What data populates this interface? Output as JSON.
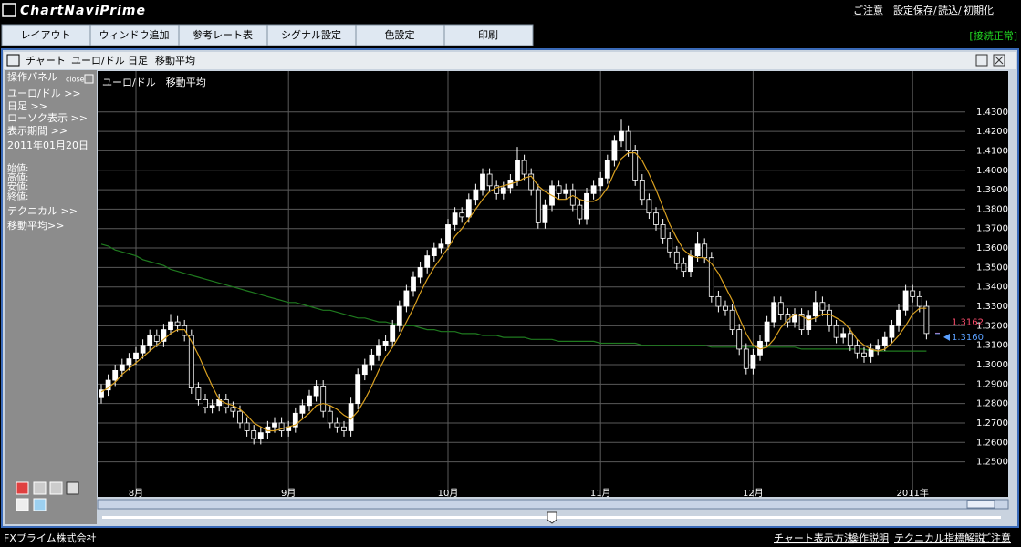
{
  "header": {
    "logo": "ChartNaviPrime",
    "links": [
      "ご注意",
      "設定保存/",
      "読込/",
      "初期化"
    ]
  },
  "menu": [
    "レイアウト",
    "ウィンドウ追加",
    "参考レート表",
    "シグナル設定",
    "色設定",
    "印刷"
  ],
  "status": "[接続正常]",
  "window_title": [
    "チャート",
    "ユーロ/ドル",
    "日足",
    "移動平均"
  ],
  "panel": {
    "title": "操作パネル",
    "close": "close",
    "items": [
      "ユーロ/ドル >>",
      "日足 >>",
      "ローソク表示 >>",
      "表示期間 >>",
      "2011年01月20日"
    ],
    "ohlc_labels": [
      "始値:",
      "高値:",
      "安値:",
      "終値:"
    ],
    "items2": [
      "テクニカル >>",
      "移動平均>>"
    ]
  },
  "chart_data": {
    "type": "candlestick",
    "title": "ユーロ/ドル　移動平均",
    "candles": [
      [
        1.283,
        1.29,
        1.28,
        1.287
      ],
      [
        1.287,
        1.295,
        1.284,
        1.292
      ],
      [
        1.292,
        1.3,
        1.289,
        1.297
      ],
      [
        1.297,
        1.303,
        1.294,
        1.3
      ],
      [
        1.3,
        1.306,
        1.297,
        1.303
      ],
      [
        1.303,
        1.309,
        1.3,
        1.306
      ],
      [
        1.306,
        1.313,
        1.303,
        1.31
      ],
      [
        1.31,
        1.318,
        1.307,
        1.315
      ],
      [
        1.315,
        1.318,
        1.309,
        1.312
      ],
      [
        1.312,
        1.321,
        1.309,
        1.318
      ],
      [
        1.318,
        1.326,
        1.315,
        1.322
      ],
      [
        1.322,
        1.325,
        1.317,
        1.32
      ],
      [
        1.32,
        1.323,
        1.312,
        1.315
      ],
      [
        1.315,
        1.318,
        1.285,
        1.288
      ],
      [
        1.288,
        1.291,
        1.279,
        1.282
      ],
      [
        1.282,
        1.285,
        1.275,
        1.278
      ],
      [
        1.278,
        1.282,
        1.275,
        1.279
      ],
      [
        1.279,
        1.285,
        1.276,
        1.282
      ],
      [
        1.282,
        1.285,
        1.275,
        1.278
      ],
      [
        1.278,
        1.281,
        1.273,
        1.276
      ],
      [
        1.276,
        1.279,
        1.267,
        1.27
      ],
      [
        1.27,
        1.273,
        1.263,
        1.266
      ],
      [
        1.266,
        1.269,
        1.259,
        1.262
      ],
      [
        1.262,
        1.268,
        1.259,
        1.265
      ],
      [
        1.265,
        1.271,
        1.262,
        1.268
      ],
      [
        1.268,
        1.273,
        1.265,
        1.27
      ],
      [
        1.27,
        1.273,
        1.263,
        1.266
      ],
      [
        1.266,
        1.271,
        1.263,
        1.268
      ],
      [
        1.268,
        1.278,
        1.265,
        1.275
      ],
      [
        1.275,
        1.282,
        1.272,
        1.279
      ],
      [
        1.279,
        1.287,
        1.276,
        1.284
      ],
      [
        1.284,
        1.292,
        1.281,
        1.289
      ],
      [
        1.289,
        1.292,
        1.273,
        1.276
      ],
      [
        1.276,
        1.279,
        1.267,
        1.27
      ],
      [
        1.27,
        1.273,
        1.265,
        1.268
      ],
      [
        1.268,
        1.271,
        1.263,
        1.266
      ],
      [
        1.266,
        1.283,
        1.263,
        1.28
      ],
      [
        1.28,
        1.298,
        1.277,
        1.295
      ],
      [
        1.295,
        1.303,
        1.292,
        1.3
      ],
      [
        1.3,
        1.308,
        1.297,
        1.305
      ],
      [
        1.305,
        1.313,
        1.302,
        1.31
      ],
      [
        1.31,
        1.315,
        1.307,
        1.312
      ],
      [
        1.312,
        1.323,
        1.309,
        1.32
      ],
      [
        1.32,
        1.333,
        1.317,
        1.33
      ],
      [
        1.33,
        1.341,
        1.327,
        1.338
      ],
      [
        1.338,
        1.348,
        1.335,
        1.345
      ],
      [
        1.345,
        1.353,
        1.342,
        1.35
      ],
      [
        1.35,
        1.359,
        1.347,
        1.356
      ],
      [
        1.356,
        1.363,
        1.353,
        1.36
      ],
      [
        1.36,
        1.365,
        1.357,
        1.362
      ],
      [
        1.362,
        1.375,
        1.359,
        1.372
      ],
      [
        1.372,
        1.381,
        1.369,
        1.378
      ],
      [
        1.378,
        1.381,
        1.373,
        1.376
      ],
      [
        1.376,
        1.388,
        1.373,
        1.385
      ],
      [
        1.385,
        1.393,
        1.382,
        1.39
      ],
      [
        1.39,
        1.401,
        1.387,
        1.398
      ],
      [
        1.398,
        1.401,
        1.389,
        1.392
      ],
      [
        1.392,
        1.395,
        1.385,
        1.388
      ],
      [
        1.388,
        1.394,
        1.385,
        1.391
      ],
      [
        1.391,
        1.398,
        1.388,
        1.395
      ],
      [
        1.395,
        1.412,
        1.392,
        1.405
      ],
      [
        1.405,
        1.408,
        1.395,
        1.398
      ],
      [
        1.398,
        1.401,
        1.387,
        1.39
      ],
      [
        1.39,
        1.393,
        1.37,
        1.373
      ],
      [
        1.373,
        1.385,
        1.37,
        1.382
      ],
      [
        1.382,
        1.395,
        1.379,
        1.392
      ],
      [
        1.392,
        1.395,
        1.385,
        1.388
      ],
      [
        1.388,
        1.393,
        1.385,
        1.39
      ],
      [
        1.39,
        1.393,
        1.379,
        1.382
      ],
      [
        1.382,
        1.385,
        1.372,
        1.375
      ],
      [
        1.375,
        1.391,
        1.372,
        1.388
      ],
      [
        1.388,
        1.395,
        1.385,
        1.392
      ],
      [
        1.392,
        1.399,
        1.389,
        1.396
      ],
      [
        1.396,
        1.408,
        1.393,
        1.405
      ],
      [
        1.405,
        1.418,
        1.402,
        1.415
      ],
      [
        1.415,
        1.426,
        1.412,
        1.42
      ],
      [
        1.42,
        1.423,
        1.407,
        1.41
      ],
      [
        1.41,
        1.413,
        1.392,
        1.395
      ],
      [
        1.395,
        1.398,
        1.382,
        1.385
      ],
      [
        1.385,
        1.388,
        1.375,
        1.378
      ],
      [
        1.378,
        1.381,
        1.369,
        1.372
      ],
      [
        1.372,
        1.375,
        1.362,
        1.365
      ],
      [
        1.365,
        1.368,
        1.355,
        1.358
      ],
      [
        1.358,
        1.361,
        1.349,
        1.352
      ],
      [
        1.352,
        1.355,
        1.345,
        1.348
      ],
      [
        1.348,
        1.359,
        1.345,
        1.356
      ],
      [
        1.356,
        1.368,
        1.353,
        1.362
      ],
      [
        1.362,
        1.365,
        1.352,
        1.355
      ],
      [
        1.355,
        1.358,
        1.332,
        1.335
      ],
      [
        1.335,
        1.338,
        1.327,
        1.33
      ],
      [
        1.33,
        1.333,
        1.325,
        1.328
      ],
      [
        1.328,
        1.331,
        1.315,
        1.318
      ],
      [
        1.318,
        1.321,
        1.305,
        1.308
      ],
      [
        1.308,
        1.311,
        1.295,
        1.298
      ],
      [
        1.298,
        1.308,
        1.295,
        1.305
      ],
      [
        1.305,
        1.315,
        1.302,
        1.312
      ],
      [
        1.312,
        1.325,
        1.309,
        1.322
      ],
      [
        1.322,
        1.335,
        1.319,
        1.332
      ],
      [
        1.332,
        1.335,
        1.323,
        1.326
      ],
      [
        1.326,
        1.329,
        1.319,
        1.322
      ],
      [
        1.322,
        1.329,
        1.319,
        1.326
      ],
      [
        1.326,
        1.329,
        1.315,
        1.318
      ],
      [
        1.318,
        1.328,
        1.315,
        1.325
      ],
      [
        1.325,
        1.338,
        1.322,
        1.332
      ],
      [
        1.332,
        1.335,
        1.325,
        1.328
      ],
      [
        1.328,
        1.331,
        1.317,
        1.32
      ],
      [
        1.32,
        1.323,
        1.311,
        1.314
      ],
      [
        1.314,
        1.319,
        1.311,
        1.316
      ],
      [
        1.316,
        1.319,
        1.307,
        1.31
      ],
      [
        1.31,
        1.313,
        1.303,
        1.306
      ],
      [
        1.306,
        1.309,
        1.301,
        1.304
      ],
      [
        1.304,
        1.311,
        1.301,
        1.308
      ],
      [
        1.308,
        1.313,
        1.305,
        1.31
      ],
      [
        1.31,
        1.317,
        1.307,
        1.314
      ],
      [
        1.314,
        1.323,
        1.311,
        1.32
      ],
      [
        1.32,
        1.331,
        1.317,
        1.328
      ],
      [
        1.328,
        1.341,
        1.325,
        1.338
      ],
      [
        1.338,
        1.341,
        1.332,
        1.335
      ],
      [
        1.335,
        1.338,
        1.327,
        1.33
      ],
      [
        1.33,
        1.333,
        1.313,
        1.316
      ]
    ],
    "series": [
      {
        "color": "#d9a020",
        "values": [
          1.286,
          1.288,
          1.291,
          1.295,
          1.298,
          1.301,
          1.304,
          1.307,
          1.31,
          1.313,
          1.316,
          1.318,
          1.318,
          1.312,
          1.305,
          1.297,
          1.289,
          1.282,
          1.28,
          1.279,
          1.277,
          1.274,
          1.27,
          1.268,
          1.266,
          1.266,
          1.267,
          1.268,
          1.269,
          1.272,
          1.275,
          1.279,
          1.28,
          1.279,
          1.277,
          1.274,
          1.272,
          1.276,
          1.282,
          1.289,
          1.297,
          1.304,
          1.309,
          1.315,
          1.322,
          1.329,
          1.337,
          1.344,
          1.35,
          1.355,
          1.36,
          1.366,
          1.37,
          1.375,
          1.38,
          1.385,
          1.389,
          1.391,
          1.392,
          1.393,
          1.394,
          1.396,
          1.397,
          1.392,
          1.389,
          1.387,
          1.385,
          1.385,
          1.387,
          1.385,
          1.384,
          1.384,
          1.386,
          1.391,
          1.399,
          1.406,
          1.409,
          1.409,
          1.405,
          1.398,
          1.39,
          1.381,
          1.372,
          1.365,
          1.359,
          1.356,
          1.355,
          1.355,
          1.352,
          1.347,
          1.34,
          1.333,
          1.324,
          1.316,
          1.31,
          1.308,
          1.309,
          1.313,
          1.319,
          1.323,
          1.326,
          1.325,
          1.323,
          1.324,
          1.326,
          1.326,
          1.324,
          1.322,
          1.318,
          1.313,
          1.31,
          1.308,
          1.307,
          1.308,
          1.311,
          1.315,
          1.32,
          1.326,
          1.329,
          1.329
        ]
      },
      {
        "color": "#1f7a1f",
        "values": [
          1.362,
          1.361,
          1.359,
          1.358,
          1.357,
          1.356,
          1.354,
          1.353,
          1.352,
          1.351,
          1.349,
          1.348,
          1.347,
          1.346,
          1.345,
          1.344,
          1.343,
          1.342,
          1.341,
          1.34,
          1.339,
          1.338,
          1.337,
          1.336,
          1.335,
          1.334,
          1.333,
          1.332,
          1.332,
          1.331,
          1.33,
          1.329,
          1.328,
          1.328,
          1.327,
          1.326,
          1.325,
          1.324,
          1.324,
          1.323,
          1.322,
          1.322,
          1.321,
          1.321,
          1.32,
          1.32,
          1.319,
          1.318,
          1.318,
          1.317,
          1.317,
          1.317,
          1.316,
          1.316,
          1.316,
          1.315,
          1.315,
          1.315,
          1.314,
          1.314,
          1.314,
          1.314,
          1.313,
          1.313,
          1.313,
          1.313,
          1.312,
          1.312,
          1.312,
          1.312,
          1.312,
          1.312,
          1.311,
          1.311,
          1.311,
          1.311,
          1.311,
          1.311,
          1.31,
          1.31,
          1.31,
          1.31,
          1.31,
          1.31,
          1.31,
          1.31,
          1.31,
          1.31,
          1.309,
          1.309,
          1.309,
          1.309,
          1.309,
          1.309,
          1.309,
          1.309,
          1.309,
          1.309,
          1.309,
          1.309,
          1.309,
          1.308,
          1.308,
          1.308,
          1.308,
          1.308,
          1.308,
          1.308,
          1.308,
          1.308,
          1.308,
          1.307,
          1.307,
          1.307,
          1.307,
          1.307,
          1.307,
          1.307,
          1.307,
          1.307
        ]
      }
    ],
    "up_color": "#ffffff",
    "down_color": "#000000",
    "xticks": [
      {
        "value": 5,
        "label": "8月"
      },
      {
        "value": 27,
        "label": "9月"
      },
      {
        "value": 50,
        "label": "10月"
      },
      {
        "value": 72,
        "label": "11月"
      },
      {
        "value": 94,
        "label": "12月"
      },
      {
        "value": 117,
        "label": "2011年"
      }
    ],
    "ylim": [
      1.232,
      1.451
    ],
    "yticks": [
      {
        "value": 1.25,
        "label": "1.2500"
      },
      {
        "value": 1.26,
        "label": "1.2600"
      },
      {
        "value": 1.27,
        "label": "1.2700"
      },
      {
        "value": 1.28,
        "label": "1.2800"
      },
      {
        "value": 1.29,
        "label": "1.2900"
      },
      {
        "value": 1.3,
        "label": "1.3000"
      },
      {
        "value": 1.31,
        "label": "1.3100"
      },
      {
        "value": 1.32,
        "label": "1.3200"
      },
      {
        "value": 1.33,
        "label": "1.3300"
      },
      {
        "value": 1.34,
        "label": "1.3400"
      },
      {
        "value": 1.35,
        "label": "1.3500"
      },
      {
        "value": 1.36,
        "label": "1.3600"
      },
      {
        "value": 1.37,
        "label": "1.3700"
      },
      {
        "value": 1.38,
        "label": "1.3800"
      },
      {
        "value": 1.39,
        "label": "1.3900"
      },
      {
        "value": 1.4,
        "label": "1.4000"
      },
      {
        "value": 1.41,
        "label": "1.4100"
      },
      {
        "value": 1.42,
        "label": "1.4200"
      },
      {
        "value": 1.43,
        "label": "1.4300"
      }
    ],
    "grid": true,
    "price_labels": [
      {
        "value": 1.3162,
        "label": "1.3162",
        "color": "#ff4d6d"
      },
      {
        "value": 1.316,
        "label": "1.3160",
        "color": "#5aa0ff"
      }
    ]
  },
  "footer": {
    "company": "FXプライム株式会社",
    "links": [
      "チャート表示方法",
      "操作説明",
      "テクニカル指標解説",
      "ご注意"
    ]
  }
}
